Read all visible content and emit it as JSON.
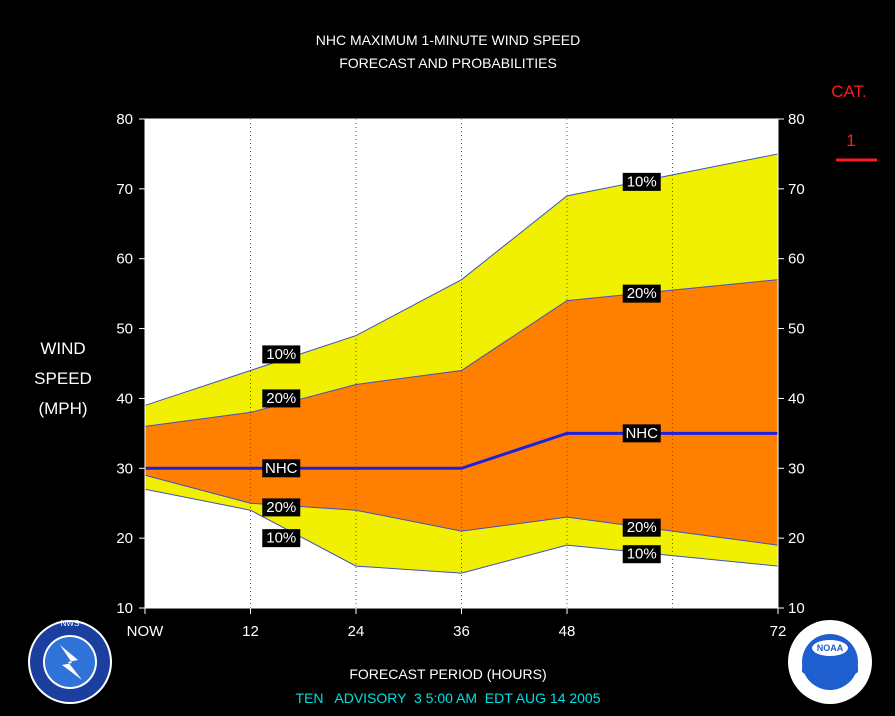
{
  "title_line1": "NHC MAXIMUM 1-MINUTE WIND SPEED",
  "title_line2": "FORECAST AND PROBABILITIES",
  "ylabel_lines": [
    "WIND",
    "SPEED",
    "(MPH)"
  ],
  "xlabel": "FORECAST PERIOD (HOURS)",
  "footer": "TEN   ADVISORY  3 5:00 AM  EDT AUG 14 2005",
  "category": {
    "label": "CAT.",
    "value": "1",
    "color": "#ff1a1a"
  },
  "logos": {
    "left": "NWS",
    "right": "NOAA"
  },
  "chart_data": {
    "type": "area",
    "x": [
      0,
      12,
      24,
      36,
      48,
      60,
      72
    ],
    "x_tick_values": [
      0,
      12,
      24,
      36,
      48,
      72
    ],
    "x_tick_labels": [
      "NOW",
      "12",
      "24",
      "36",
      "48",
      "72"
    ],
    "xlim": [
      0,
      72
    ],
    "ylim": [
      10,
      80
    ],
    "y_ticks": [
      10,
      20,
      30,
      40,
      50,
      60,
      70,
      80
    ],
    "grid": "vertical dotted at each forecast hour",
    "bands": [
      {
        "name": "10%",
        "color": "#f0f000",
        "upper": [
          39,
          44,
          49,
          57,
          69,
          72,
          75
        ],
        "lower": [
          27,
          24,
          16,
          15,
          19,
          17.5,
          16
        ]
      },
      {
        "name": "20%",
        "color": "#ff8000",
        "upper": [
          36,
          38,
          42,
          44,
          54,
          55.5,
          57
        ],
        "lower": [
          29,
          25,
          24,
          21,
          23,
          21,
          19
        ]
      }
    ],
    "series": [
      {
        "name": "NHC",
        "color": "#1f1fe0",
        "values": [
          30,
          30,
          30,
          30,
          35,
          35,
          35
        ]
      }
    ],
    "labels": [
      {
        "text": "10%",
        "x": 15.5,
        "y": 46.3
      },
      {
        "text": "20%",
        "x": 15.5,
        "y": 40.0
      },
      {
        "text": "NHC",
        "x": 15.5,
        "y": 30.0
      },
      {
        "text": "20%",
        "x": 15.5,
        "y": 24.4
      },
      {
        "text": "10%",
        "x": 15.5,
        "y": 20.0
      },
      {
        "text": "10%",
        "x": 56.5,
        "y": 71.0
      },
      {
        "text": "20%",
        "x": 56.5,
        "y": 55.0
      },
      {
        "text": "NHC",
        "x": 56.5,
        "y": 35.0
      },
      {
        "text": "20%",
        "x": 56.5,
        "y": 21.5
      },
      {
        "text": "10%",
        "x": 56.5,
        "y": 17.7
      }
    ]
  }
}
